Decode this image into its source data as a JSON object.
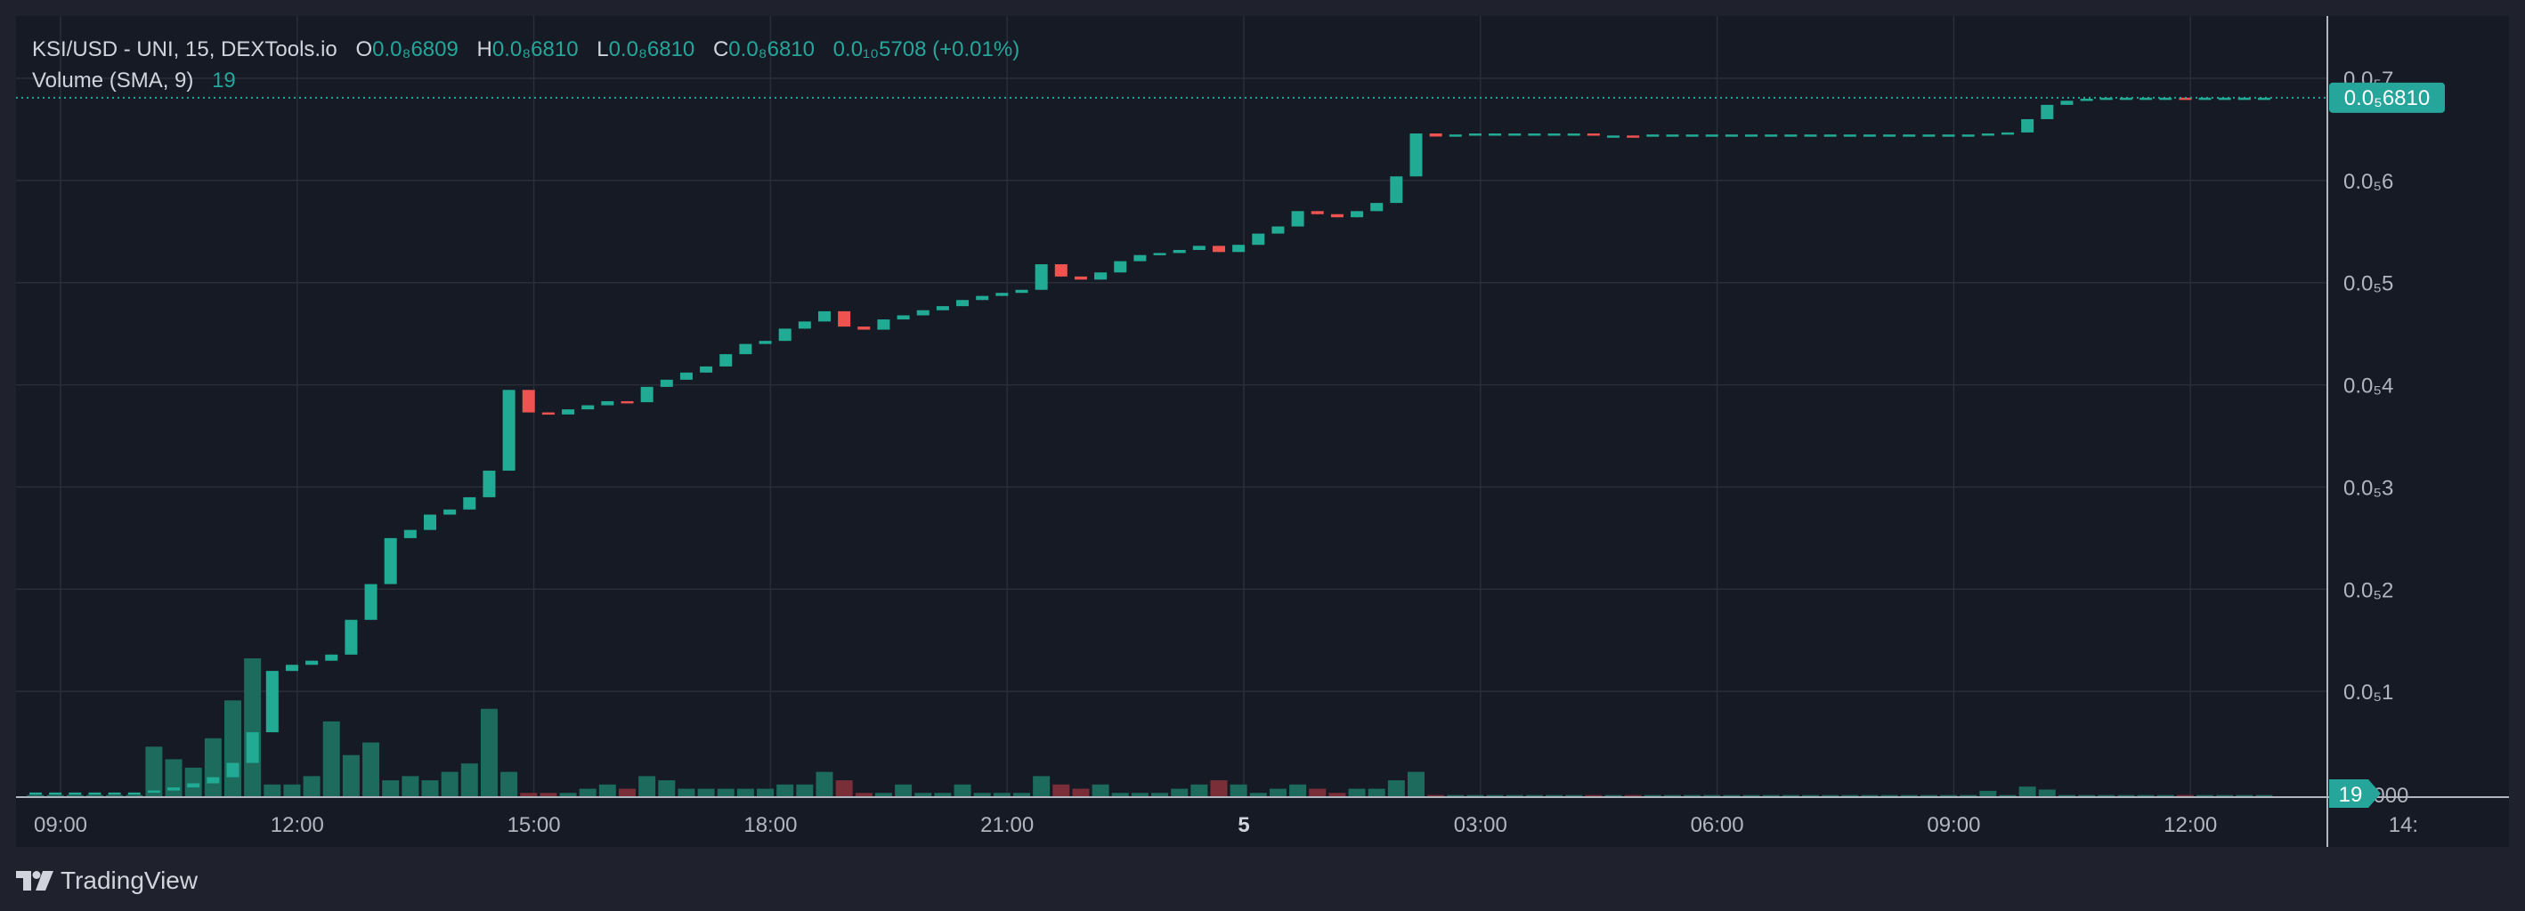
{
  "header": {
    "symbol": "KSI/USD - UNI, 15, DEXTools.io",
    "ohlc": [
      {
        "key": "O",
        "value": "0.0₈6809"
      },
      {
        "key": "H",
        "value": "0.0₈6810"
      },
      {
        "key": "L",
        "value": "0.0₈6810"
      },
      {
        "key": "C",
        "value": "0.0₈6810"
      }
    ],
    "change": "0.0₁₀5708 (+0.01%)",
    "volume_label": "Volume (SMA, 9)",
    "volume_value": "19"
  },
  "footer": {
    "brand": "TradingView"
  },
  "colors": {
    "up": "#26a69a",
    "down": "#ef5350",
    "up_bright": "#22ab94",
    "vol_up": "#1d6b5d",
    "vol_down": "#7a2e38",
    "axis_text": "#b2b5be",
    "grid": "#2a2e39",
    "background": "#161a25"
  },
  "chart_data": {
    "type": "candlestick",
    "series": [
      {
        "name": "KSI/USD",
        "type": "candlestick"
      },
      {
        "name": "Volume",
        "type": "bar"
      }
    ],
    "price_axis": {
      "tick_labels": [
        "0.0₅7",
        "0.0₅6",
        "0.0₅5",
        "0.0₅4",
        "0.0₅3",
        "0.0₅2",
        "0.0₅1",
        "0.0000"
      ],
      "range_scaled": [
        0,
        0.7
      ],
      "last_price_label": "0.0₅6810",
      "last_price_scaled": 0.681,
      "volume_label": "19"
    },
    "time_axis": {
      "tick_labels": [
        "09:00",
        "12:00",
        "15:00",
        "18:00",
        "21:00",
        "5",
        "03:00",
        "06:00",
        "09:00",
        "12:00",
        "14:"
      ],
      "bar_interval_min": 15,
      "start": "09:00"
    },
    "candles": [
      [
        0.001,
        0.001,
        0.001,
        0.001
      ],
      [
        0.001,
        0.001,
        0.001,
        0.001
      ],
      [
        0.001,
        0.001,
        0.001,
        0.001
      ],
      [
        0.001,
        0.001,
        0.001,
        0.001
      ],
      [
        0.001,
        0.001,
        0.001,
        0.001
      ],
      [
        0.001,
        0.001,
        0.001,
        0.001
      ],
      [
        0.002,
        0.003,
        0.001,
        0.003
      ],
      [
        0.003,
        0.006,
        0.003,
        0.006
      ],
      [
        0.006,
        0.01,
        0.006,
        0.01
      ],
      [
        0.01,
        0.016,
        0.01,
        0.016
      ],
      [
        0.016,
        0.03,
        0.016,
        0.03
      ],
      [
        0.03,
        0.06,
        0.03,
        0.06
      ],
      [
        0.06,
        0.12,
        0.06,
        0.12
      ],
      [
        0.12,
        0.126,
        0.12,
        0.126
      ],
      [
        0.126,
        0.13,
        0.126,
        0.13
      ],
      [
        0.13,
        0.136,
        0.13,
        0.136
      ],
      [
        0.136,
        0.17,
        0.136,
        0.17
      ],
      [
        0.17,
        0.205,
        0.17,
        0.205
      ],
      [
        0.205,
        0.25,
        0.205,
        0.25
      ],
      [
        0.25,
        0.258,
        0.25,
        0.258
      ],
      [
        0.258,
        0.273,
        0.258,
        0.273
      ],
      [
        0.273,
        0.278,
        0.273,
        0.278
      ],
      [
        0.278,
        0.29,
        0.278,
        0.29
      ],
      [
        0.29,
        0.316,
        0.29,
        0.316
      ],
      [
        0.316,
        0.395,
        0.316,
        0.395
      ],
      [
        0.395,
        0.373,
        0.373,
        0.395
      ],
      [
        0.373,
        0.371,
        0.371,
        0.373
      ],
      [
        0.371,
        0.376,
        0.371,
        0.376
      ],
      [
        0.376,
        0.38,
        0.376,
        0.38
      ],
      [
        0.38,
        0.384,
        0.38,
        0.384
      ],
      [
        0.384,
        0.383,
        0.383,
        0.384
      ],
      [
        0.383,
        0.398,
        0.383,
        0.398
      ],
      [
        0.398,
        0.405,
        0.398,
        0.405
      ],
      [
        0.405,
        0.412,
        0.405,
        0.412
      ],
      [
        0.412,
        0.418,
        0.412,
        0.418
      ],
      [
        0.418,
        0.43,
        0.418,
        0.43
      ],
      [
        0.43,
        0.44,
        0.43,
        0.44
      ],
      [
        0.44,
        0.443,
        0.44,
        0.443
      ],
      [
        0.443,
        0.455,
        0.443,
        0.455
      ],
      [
        0.455,
        0.462,
        0.455,
        0.462
      ],
      [
        0.462,
        0.472,
        0.462,
        0.472
      ],
      [
        0.472,
        0.457,
        0.457,
        0.472
      ],
      [
        0.457,
        0.454,
        0.454,
        0.457
      ],
      [
        0.454,
        0.464,
        0.454,
        0.464
      ],
      [
        0.464,
        0.468,
        0.464,
        0.468
      ],
      [
        0.468,
        0.473,
        0.468,
        0.473
      ],
      [
        0.473,
        0.477,
        0.473,
        0.477
      ],
      [
        0.477,
        0.483,
        0.477,
        0.483
      ],
      [
        0.483,
        0.487,
        0.483,
        0.487
      ],
      [
        0.487,
        0.49,
        0.487,
        0.49
      ],
      [
        0.49,
        0.493,
        0.49,
        0.493
      ],
      [
        0.493,
        0.518,
        0.493,
        0.518
      ],
      [
        0.518,
        0.506,
        0.506,
        0.518
      ],
      [
        0.506,
        0.503,
        0.503,
        0.506
      ],
      [
        0.503,
        0.51,
        0.503,
        0.51
      ],
      [
        0.51,
        0.521,
        0.51,
        0.521
      ],
      [
        0.521,
        0.527,
        0.521,
        0.527
      ],
      [
        0.527,
        0.529,
        0.527,
        0.529
      ],
      [
        0.529,
        0.532,
        0.529,
        0.532
      ],
      [
        0.532,
        0.536,
        0.532,
        0.536
      ],
      [
        0.536,
        0.53,
        0.53,
        0.536
      ],
      [
        0.53,
        0.537,
        0.53,
        0.537
      ],
      [
        0.537,
        0.548,
        0.537,
        0.548
      ],
      [
        0.548,
        0.555,
        0.548,
        0.555
      ],
      [
        0.555,
        0.57,
        0.555,
        0.57
      ],
      [
        0.57,
        0.567,
        0.567,
        0.57
      ],
      [
        0.567,
        0.564,
        0.564,
        0.567
      ],
      [
        0.564,
        0.57,
        0.564,
        0.57
      ],
      [
        0.57,
        0.578,
        0.57,
        0.578
      ],
      [
        0.578,
        0.604,
        0.578,
        0.604
      ],
      [
        0.604,
        0.646,
        0.604,
        0.646
      ],
      [
        0.646,
        0.643,
        0.643,
        0.646
      ],
      [
        0.643,
        0.645,
        0.643,
        0.645
      ],
      [
        0.645,
        0.646,
        0.645,
        0.646
      ],
      [
        0.646,
        0.646,
        0.646,
        0.646
      ],
      [
        0.646,
        0.646,
        0.646,
        0.646
      ],
      [
        0.646,
        0.646,
        0.646,
        0.646
      ],
      [
        0.646,
        0.646,
        0.646,
        0.646
      ],
      [
        0.646,
        0.646,
        0.646,
        0.646
      ],
      [
        0.646,
        0.644,
        0.644,
        0.646
      ],
      [
        0.644,
        0.644,
        0.644,
        0.644
      ],
      [
        0.644,
        0.643,
        0.643,
        0.644
      ],
      [
        0.643,
        0.645,
        0.643,
        0.645
      ],
      [
        0.645,
        0.645,
        0.645,
        0.645
      ],
      [
        0.645,
        0.645,
        0.645,
        0.645
      ],
      [
        0.645,
        0.645,
        0.645,
        0.645
      ],
      [
        0.645,
        0.645,
        0.645,
        0.645
      ],
      [
        0.645,
        0.645,
        0.645,
        0.645
      ],
      [
        0.645,
        0.645,
        0.645,
        0.645
      ],
      [
        0.645,
        0.645,
        0.645,
        0.645
      ],
      [
        0.645,
        0.645,
        0.645,
        0.645
      ],
      [
        0.645,
        0.645,
        0.645,
        0.645
      ],
      [
        0.645,
        0.645,
        0.645,
        0.645
      ],
      [
        0.645,
        0.645,
        0.645,
        0.645
      ],
      [
        0.645,
        0.645,
        0.645,
        0.645
      ],
      [
        0.645,
        0.645,
        0.645,
        0.645
      ],
      [
        0.645,
        0.645,
        0.645,
        0.645
      ],
      [
        0.645,
        0.645,
        0.645,
        0.645
      ],
      [
        0.645,
        0.645,
        0.645,
        0.645
      ],
      [
        0.645,
        0.646,
        0.645,
        0.646
      ],
      [
        0.646,
        0.647,
        0.646,
        0.647
      ],
      [
        0.647,
        0.66,
        0.647,
        0.66
      ],
      [
        0.66,
        0.674,
        0.66,
        0.674
      ],
      [
        0.674,
        0.678,
        0.674,
        0.678
      ],
      [
        0.678,
        0.68,
        0.678,
        0.68
      ],
      [
        0.68,
        0.681,
        0.68,
        0.681
      ],
      [
        0.681,
        0.681,
        0.681,
        0.681
      ],
      [
        0.681,
        0.681,
        0.681,
        0.681
      ],
      [
        0.681,
        0.681,
        0.681,
        0.681
      ],
      [
        0.681,
        0.68,
        0.68,
        0.681
      ],
      [
        0.68,
        0.681,
        0.68,
        0.681
      ],
      [
        0.681,
        0.681,
        0.681,
        0.681
      ],
      [
        0.681,
        0.681,
        0.681,
        0.681
      ],
      [
        0.681,
        0.681,
        0.681,
        0.681
      ]
    ],
    "volumes": [
      0.5,
      0.5,
      0.5,
      0.5,
      0.5,
      0.5,
      12,
      9,
      7,
      14,
      23,
      33,
      3,
      3,
      5,
      18,
      10,
      13,
      4,
      5,
      4,
      6,
      8,
      21,
      6,
      1,
      1,
      1,
      2,
      3,
      2,
      5,
      4,
      2,
      2,
      2,
      2,
      2,
      3,
      3,
      6,
      4,
      1,
      1,
      3,
      1,
      1,
      3,
      1,
      1,
      1,
      5,
      3,
      2,
      3,
      1,
      1,
      1,
      2,
      3,
      4,
      3,
      1,
      2,
      3,
      2,
      1,
      2,
      2,
      4,
      6,
      0.5,
      0.5,
      0.5,
      0.5,
      0.5,
      0.5,
      0.5,
      0.5,
      0.5,
      0.5,
      0.5,
      0.5,
      0.5,
      0.5,
      0.5,
      0.5,
      0.5,
      0.5,
      0.5,
      0.5,
      0.5,
      0.5,
      0.5,
      0.5,
      0.5,
      0.5,
      0.5,
      0.5,
      1.5,
      0.5,
      2.5,
      1.8,
      0.5,
      0.5,
      0.5,
      0.5,
      0.5,
      0.5,
      0.5,
      0.5,
      0.5,
      0.5,
      0.5
    ]
  }
}
